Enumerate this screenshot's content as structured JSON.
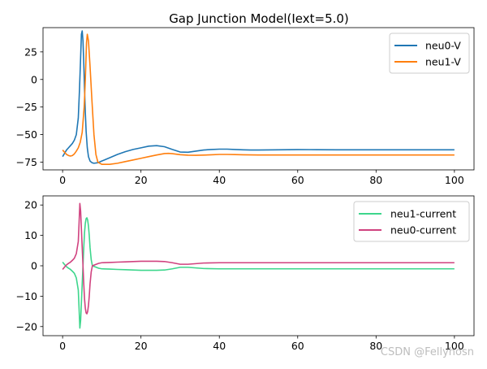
{
  "figure": {
    "watermark": "CSDN @Fellyhosn"
  },
  "chart_data": [
    {
      "type": "line",
      "title": "Gap Junction Model(Iext=5.0)",
      "xlabel": "",
      "ylabel": "",
      "xlim": [
        -5,
        105
      ],
      "ylim": [
        -82,
        47
      ],
      "xticks": [
        0,
        20,
        40,
        60,
        80,
        100
      ],
      "yticks": [
        -75,
        -50,
        -25,
        0,
        25
      ],
      "grid": false,
      "legend": "top-right",
      "series": [
        {
          "name": "neu0-V",
          "color": "#1f77b4",
          "x": [
            0,
            0.5,
            1,
            1.5,
            2,
            2.5,
            3,
            3.5,
            4,
            4.3,
            4.6,
            4.8,
            5,
            5.2,
            5.4,
            5.6,
            5.8,
            6,
            6.3,
            6.6,
            7,
            7.5,
            8,
            9,
            10,
            12,
            14,
            16,
            18,
            20,
            22,
            24,
            26,
            28,
            30,
            32,
            34,
            36,
            38,
            40,
            42,
            44,
            46,
            48,
            50,
            55,
            60,
            65,
            70,
            75,
            80,
            85,
            90,
            95,
            100
          ],
          "y": [
            -70,
            -67,
            -64,
            -62,
            -60,
            -58,
            -55,
            -50,
            -35,
            -10,
            20,
            41,
            44,
            35,
            15,
            -10,
            -30,
            -47,
            -62,
            -70,
            -74,
            -75.5,
            -76,
            -75.5,
            -74,
            -71,
            -68,
            -65.5,
            -63.5,
            -62,
            -60.5,
            -60,
            -61,
            -63.5,
            -65.8,
            -66,
            -65,
            -64,
            -63.5,
            -63.2,
            -63.2,
            -63.5,
            -63.8,
            -64,
            -64,
            -63.8,
            -63.6,
            -63.7,
            -63.8,
            -63.8,
            -63.8,
            -63.8,
            -63.8,
            -63.8,
            -63.8
          ]
        },
        {
          "name": "neu1-V",
          "color": "#ff7f0e",
          "x": [
            0,
            0.5,
            1,
            1.5,
            2,
            2.5,
            3,
            3.5,
            4,
            4.5,
            5,
            5.5,
            5.8,
            6.1,
            6.3,
            6.6,
            7,
            7.5,
            8,
            8.5,
            9,
            10,
            12,
            14,
            16,
            18,
            20,
            22,
            24,
            26,
            27,
            28,
            30,
            32,
            34,
            36,
            38,
            40,
            42,
            44,
            46,
            50,
            60,
            70,
            80,
            90,
            100
          ],
          "y": [
            -64,
            -66,
            -68,
            -69,
            -69.5,
            -69,
            -67.5,
            -65,
            -62,
            -57,
            -48,
            -25,
            0,
            33,
            41,
            35,
            12,
            -20,
            -50,
            -68,
            -75,
            -77,
            -77,
            -76,
            -74.5,
            -73,
            -71.5,
            -70,
            -68.5,
            -67.2,
            -67,
            -67.3,
            -68.2,
            -68.7,
            -68.8,
            -68.6,
            -68.3,
            -68,
            -68,
            -68.1,
            -68.3,
            -68.5,
            -68.5,
            -68.5,
            -68.5,
            -68.5,
            -68.5
          ]
        }
      ]
    },
    {
      "type": "line",
      "title": "",
      "xlabel": "",
      "ylabel": "",
      "xlim": [
        -5,
        105
      ],
      "ylim": [
        -23,
        23
      ],
      "xticks": [
        0,
        20,
        40,
        60,
        80,
        100
      ],
      "yticks": [
        -20,
        -10,
        0,
        10,
        20
      ],
      "grid": false,
      "legend": "top-right",
      "series": [
        {
          "name": "neu1-current",
          "color": "#3dd68c",
          "x": [
            0,
            0.5,
            1,
            1.5,
            2,
            2.5,
            3,
            3.5,
            4,
            4.2,
            4.4,
            4.6,
            4.8,
            5,
            5.2,
            5.4,
            5.6,
            5.8,
            6,
            6.2,
            6.4,
            6.6,
            6.8,
            7,
            7.3,
            7.6,
            8,
            8.4,
            8.8,
            9.2,
            10,
            12,
            14,
            16,
            18,
            20,
            22,
            24,
            26,
            28,
            30,
            32,
            34,
            36,
            40,
            45,
            50,
            60,
            70,
            80,
            90,
            100
          ],
          "y": [
            1.2,
            0.4,
            -0.3,
            -0.8,
            -1.2,
            -1.8,
            -2.5,
            -4,
            -8,
            -14,
            -20.5,
            -18,
            -12,
            -6,
            0,
            6,
            11,
            14,
            15.5,
            15.8,
            15,
            13,
            10,
            6,
            2,
            0,
            -0.2,
            -0.4,
            -0.6,
            -0.8,
            -1,
            -1.1,
            -1.2,
            -1.3,
            -1.4,
            -1.5,
            -1.5,
            -1.5,
            -1.4,
            -1.0,
            -0.5,
            -0.5,
            -0.7,
            -0.9,
            -1.0,
            -1.0,
            -1.0,
            -1.0,
            -1.0,
            -1.0,
            -1.0,
            -1.0
          ]
        },
        {
          "name": "neu0-current",
          "color": "#d0427f",
          "x": [
            0,
            0.5,
            1,
            1.5,
            2,
            2.5,
            3,
            3.5,
            4,
            4.2,
            4.4,
            4.6,
            4.8,
            5,
            5.2,
            5.4,
            5.6,
            5.8,
            6,
            6.2,
            6.4,
            6.6,
            6.8,
            7,
            7.3,
            7.6,
            8,
            8.4,
            8.8,
            9.2,
            10,
            12,
            14,
            16,
            18,
            20,
            22,
            24,
            26,
            28,
            30,
            32,
            34,
            36,
            40,
            45,
            50,
            60,
            70,
            80,
            90,
            100
          ],
          "y": [
            -1.2,
            -0.4,
            0.3,
            0.8,
            1.2,
            1.8,
            2.5,
            4,
            8,
            14,
            20.5,
            18,
            12,
            6,
            0,
            -6,
            -11,
            -14,
            -15.5,
            -15.8,
            -15,
            -13,
            -10,
            -6,
            -2,
            0,
            0.2,
            0.4,
            0.6,
            0.8,
            1,
            1.1,
            1.2,
            1.3,
            1.4,
            1.5,
            1.5,
            1.5,
            1.4,
            1.0,
            0.5,
            0.5,
            0.7,
            0.9,
            1.0,
            1.0,
            1.0,
            1.0,
            1.0,
            1.0,
            1.0,
            1.0
          ]
        }
      ]
    }
  ]
}
